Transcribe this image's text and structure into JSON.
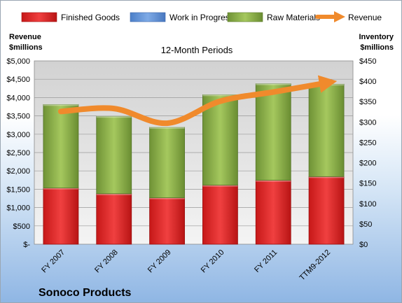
{
  "chart_data": {
    "type": "bar",
    "subtitle": "12-Month Periods",
    "company": "Sonoco Products",
    "categories": [
      "FY 2007",
      "FY 2008",
      "FY 2009",
      "FY 2010",
      "FY 2011",
      "TTM9-2012"
    ],
    "left_axis": {
      "title_line1": "Revenue",
      "title_line2": "$millions",
      "ylim": [
        0,
        5000
      ],
      "ticks": [
        0,
        500,
        1000,
        1500,
        2000,
        2500,
        3000,
        3500,
        4000,
        4500,
        5000
      ],
      "tick_labels": [
        "$-",
        "$500",
        "$1,000",
        "$1,500",
        "$2,000",
        "$2,500",
        "$3,000",
        "$3,500",
        "$4,000",
        "$4,500",
        "$5,000"
      ]
    },
    "right_axis": {
      "title_line1": "Inventory",
      "title_line2": "$millions",
      "ylim": [
        0,
        450
      ],
      "ticks": [
        0,
        50,
        100,
        150,
        200,
        250,
        300,
        350,
        400,
        450
      ],
      "tick_labels": [
        "$0",
        "$50",
        "$100",
        "$150",
        "$200",
        "$250",
        "$300",
        "$350",
        "$400",
        "$450"
      ]
    },
    "series": [
      {
        "name": "Finished Goods",
        "axis": "right",
        "kind": "stacked-bar",
        "color": "#e02020",
        "values": [
          138,
          124,
          114,
          145,
          157,
          166
        ]
      },
      {
        "name": "Work in Progress",
        "axis": "right",
        "kind": "stacked-bar",
        "color": "#5b8fd8",
        "values": [
          0,
          0,
          0,
          0,
          0,
          0
        ]
      },
      {
        "name": "Raw Materials",
        "axis": "right",
        "kind": "stacked-bar",
        "color": "#8db048",
        "values": [
          205,
          190,
          173,
          222,
          237,
          227
        ]
      },
      {
        "name": "Revenue",
        "axis": "left",
        "kind": "line",
        "color": "#f08a2c",
        "values": [
          3620,
          3700,
          3300,
          3900,
          4150,
          4400
        ]
      }
    ],
    "grid": true,
    "legend_position": "top"
  }
}
